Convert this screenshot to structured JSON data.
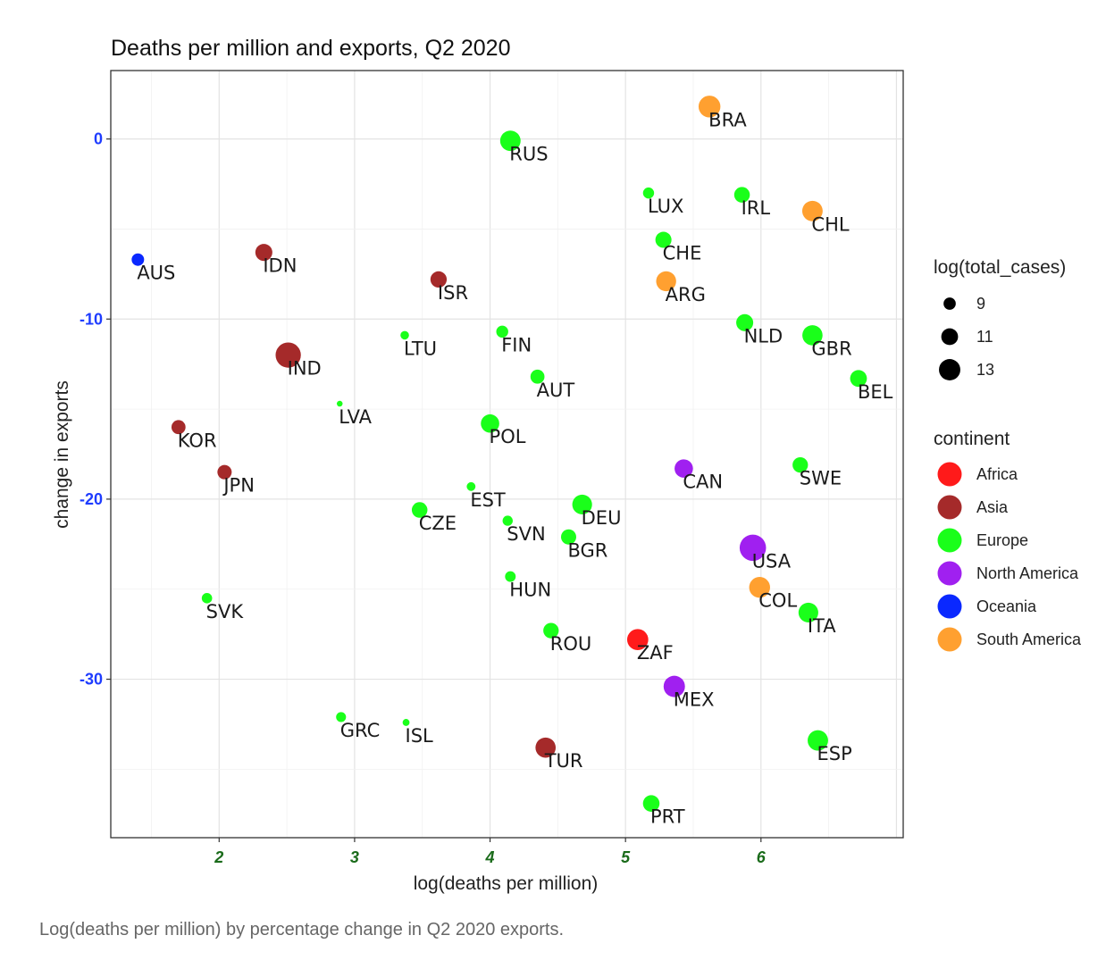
{
  "chart_data": {
    "type": "scatter",
    "title": "Deaths per million and exports, Q2 2020",
    "xlabel": "log(deaths per million)",
    "ylabel": "change in exports",
    "xlim": [
      1.2,
      7.05
    ],
    "ylim": [
      -38.8,
      3.8
    ],
    "xticks": [
      2,
      3,
      4,
      5,
      6
    ],
    "yticks": [
      0,
      -10,
      -20,
      -30
    ],
    "grid": true,
    "size_legend": {
      "title": "log(total_cases)",
      "entries": [
        {
          "label": "9",
          "value": 9
        },
        {
          "label": "11",
          "value": 11
        },
        {
          "label": "13",
          "value": 13
        }
      ]
    },
    "color_legend": {
      "title": "continent",
      "placement": "right",
      "entries": [
        {
          "label": "Africa",
          "color": "#ff1a1a"
        },
        {
          "label": "Asia",
          "color": "#a52a2a"
        },
        {
          "label": "Europe",
          "color": "#1aff1a"
        },
        {
          "label": "North America",
          "color": "#a020f0"
        },
        {
          "label": "Oceania",
          "color": "#0a28ff"
        },
        {
          "label": "South America",
          "color": "#ffa030"
        }
      ]
    },
    "points": [
      {
        "label": "BRA",
        "x": 5.62,
        "y": 1.8,
        "continent": "South America",
        "size": 13.2
      },
      {
        "label": "RUS",
        "x": 4.15,
        "y": -0.1,
        "continent": "Europe",
        "size": 12.6
      },
      {
        "label": "LUX",
        "x": 5.17,
        "y": -3.0,
        "continent": "Europe",
        "size": 8.5
      },
      {
        "label": "IRL",
        "x": 5.86,
        "y": -3.1,
        "continent": "Europe",
        "size": 10.5
      },
      {
        "label": "CHL",
        "x": 6.38,
        "y": -4.0,
        "continent": "South America",
        "size": 12.6
      },
      {
        "label": "CHE",
        "x": 5.28,
        "y": -5.6,
        "continent": "Europe",
        "size": 10.7
      },
      {
        "label": "AUS",
        "x": 1.4,
        "y": -6.7,
        "continent": "Oceania",
        "size": 9.1
      },
      {
        "label": "IDN",
        "x": 2.33,
        "y": -6.3,
        "continent": "Asia",
        "size": 11.1
      },
      {
        "label": "ISR",
        "x": 3.62,
        "y": -7.8,
        "continent": "Asia",
        "size": 10.8
      },
      {
        "label": "ARG",
        "x": 5.3,
        "y": -7.9,
        "continent": "South America",
        "size": 12.4
      },
      {
        "label": "NLD",
        "x": 5.88,
        "y": -10.2,
        "continent": "Europe",
        "size": 11.1
      },
      {
        "label": "GBR",
        "x": 6.38,
        "y": -10.9,
        "continent": "Europe",
        "size": 12.5
      },
      {
        "label": "LTU",
        "x": 3.37,
        "y": -10.9,
        "continent": "Europe",
        "size": 7.4
      },
      {
        "label": "FIN",
        "x": 4.09,
        "y": -10.7,
        "continent": "Europe",
        "size": 8.9
      },
      {
        "label": "IND",
        "x": 2.51,
        "y": -12.0,
        "continent": "Asia",
        "size": 14.7
      },
      {
        "label": "AUT",
        "x": 4.35,
        "y": -13.2,
        "continent": "Europe",
        "size": 9.8
      },
      {
        "label": "BEL",
        "x": 6.72,
        "y": -13.3,
        "continent": "Europe",
        "size": 11.0
      },
      {
        "label": "LVA",
        "x": 2.89,
        "y": -14.7,
        "continent": "Europe",
        "size": 6.2
      },
      {
        "label": "POL",
        "x": 4.0,
        "y": -15.8,
        "continent": "Europe",
        "size": 11.7
      },
      {
        "label": "KOR",
        "x": 1.7,
        "y": -16.0,
        "continent": "Asia",
        "size": 9.8
      },
      {
        "label": "CAN",
        "x": 5.43,
        "y": -18.3,
        "continent": "North America",
        "size": 11.7
      },
      {
        "label": "SWE",
        "x": 6.29,
        "y": -18.1,
        "continent": "Europe",
        "size": 10.4
      },
      {
        "label": "JPN",
        "x": 2.04,
        "y": -18.5,
        "continent": "Asia",
        "size": 9.9
      },
      {
        "label": "EST",
        "x": 3.86,
        "y": -19.3,
        "continent": "Europe",
        "size": 7.5
      },
      {
        "label": "DEU",
        "x": 4.68,
        "y": -20.3,
        "continent": "Europe",
        "size": 12.3
      },
      {
        "label": "CZE",
        "x": 3.48,
        "y": -20.6,
        "continent": "Europe",
        "size": 10.5
      },
      {
        "label": "SVN",
        "x": 4.13,
        "y": -21.2,
        "continent": "Europe",
        "size": 8.1
      },
      {
        "label": "BGR",
        "x": 4.58,
        "y": -22.1,
        "continent": "Europe",
        "size": 10.3
      },
      {
        "label": "USA",
        "x": 5.94,
        "y": -22.7,
        "continent": "North America",
        "size": 15.2
      },
      {
        "label": "HUN",
        "x": 4.15,
        "y": -24.3,
        "continent": "Europe",
        "size": 8.3
      },
      {
        "label": "COL",
        "x": 5.99,
        "y": -24.9,
        "continent": "South America",
        "size": 12.8
      },
      {
        "label": "SVK",
        "x": 1.91,
        "y": -25.5,
        "continent": "Europe",
        "size": 8.2
      },
      {
        "label": "ITA",
        "x": 6.35,
        "y": -26.3,
        "continent": "Europe",
        "size": 12.3
      },
      {
        "label": "ROU",
        "x": 4.45,
        "y": -27.3,
        "continent": "Europe",
        "size": 10.4
      },
      {
        "label": "ZAF",
        "x": 5.09,
        "y": -27.8,
        "continent": "Africa",
        "size": 12.9
      },
      {
        "label": "MEX",
        "x": 5.36,
        "y": -30.4,
        "continent": "North America",
        "size": 13.0
      },
      {
        "label": "GRC",
        "x": 2.9,
        "y": -32.1,
        "continent": "Europe",
        "size": 8.0
      },
      {
        "label": "ISL",
        "x": 3.38,
        "y": -32.4,
        "continent": "Europe",
        "size": 6.7
      },
      {
        "label": "TUR",
        "x": 4.41,
        "y": -33.8,
        "continent": "Asia",
        "size": 12.5
      },
      {
        "label": "ESP",
        "x": 6.42,
        "y": -33.4,
        "continent": "Europe",
        "size": 12.6
      },
      {
        "label": "PRT",
        "x": 5.19,
        "y": -36.9,
        "continent": "Europe",
        "size": 10.9
      }
    ]
  },
  "caption": "Log(deaths per million) by percentage change in Q2 2020 exports."
}
